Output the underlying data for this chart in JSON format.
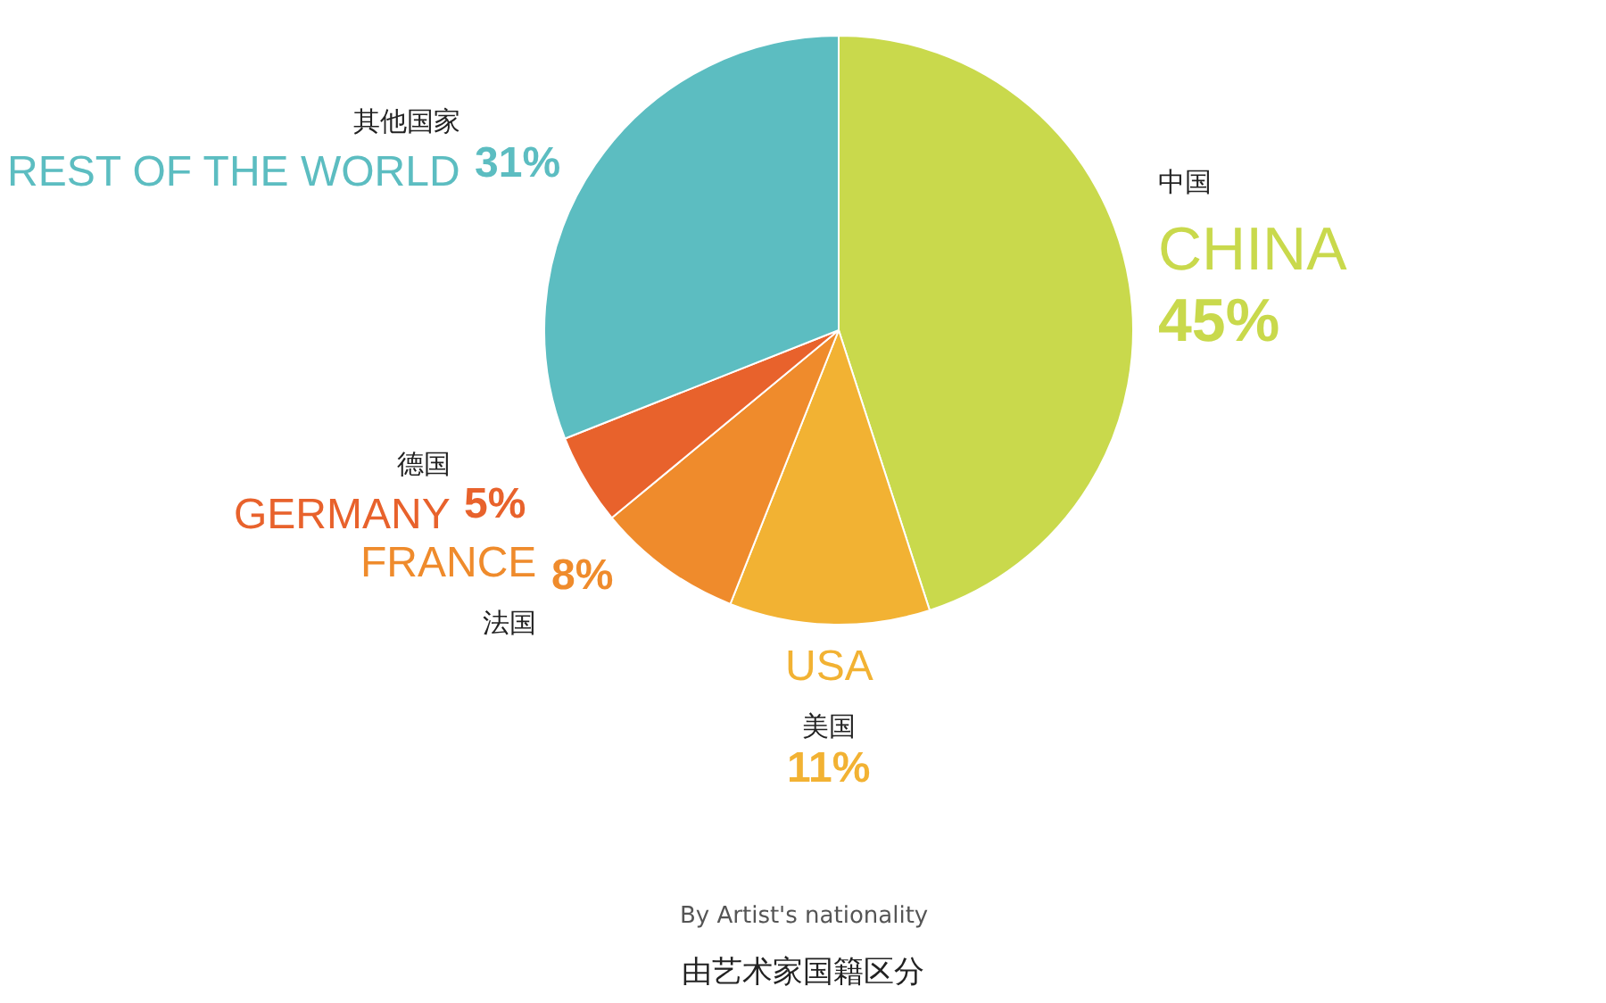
{
  "chart_data": {
    "type": "pie",
    "categories": [
      "中国\nCHINA",
      "USA\n美国",
      "FRANCE\n法国",
      "德国\nGERMANY",
      "其他国家\nREST OF THE WORLD"
    ],
    "values": [
      45,
      11,
      8,
      5,
      31
    ],
    "value_labels": [
      "45%",
      "11%",
      "8%",
      "5%",
      "31%"
    ],
    "colors": [
      "#c9d94c",
      "#f2b233",
      "#ef8b2c",
      "#e8622c",
      "#5cbdc1"
    ],
    "legend": false,
    "annotations": [
      "By Artist's nationality",
      "由艺术家国籍区分"
    ]
  }
}
